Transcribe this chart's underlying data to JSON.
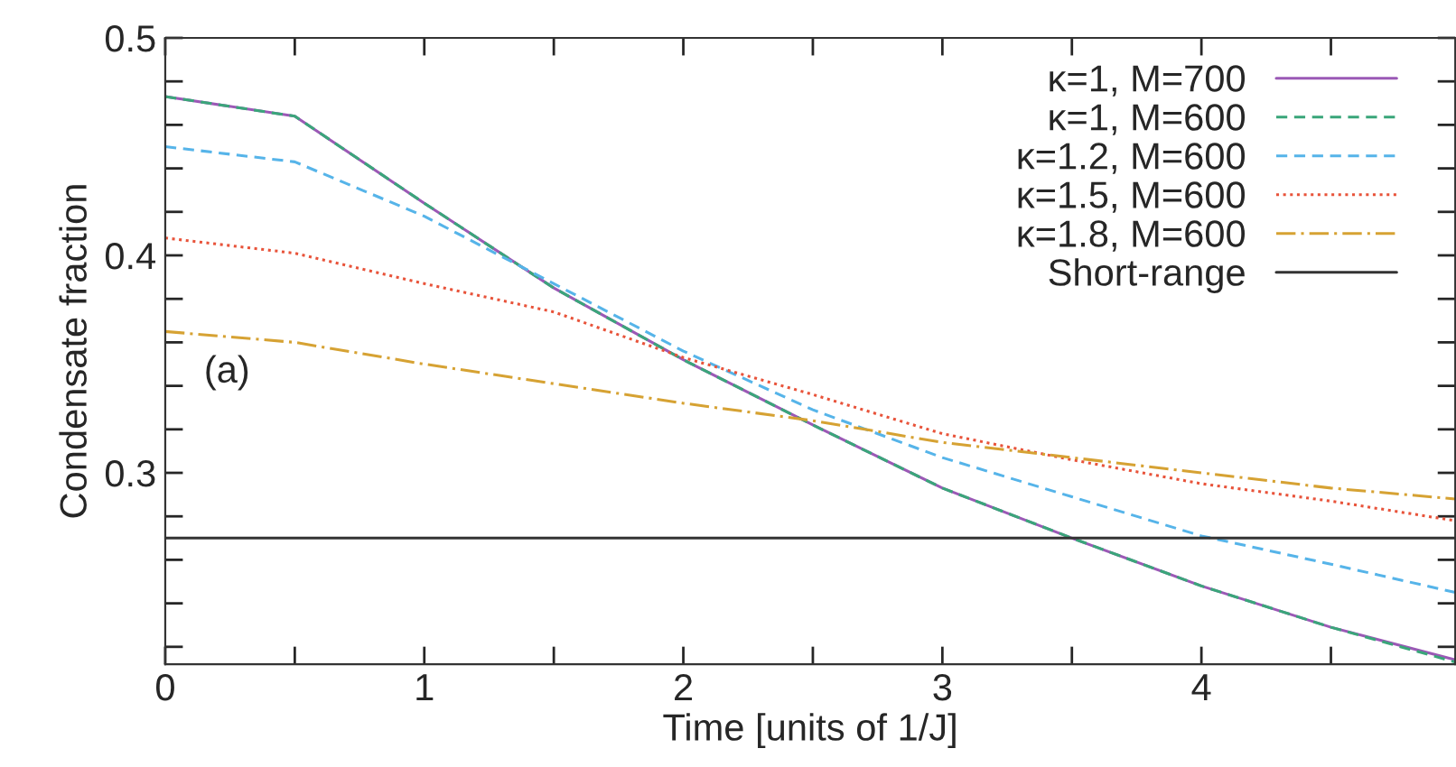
{
  "chart_data": {
    "type": "line",
    "xlabel": "Time [units of 1/J]",
    "ylabel": "Condensate fraction",
    "xlim": [
      0,
      4.98
    ],
    "xticks": [
      0,
      {
        "value": 0.5,
        "label": null
      },
      1,
      {
        "value": 1.5,
        "label": null
      },
      2,
      {
        "value": 2.5,
        "label": null
      },
      3,
      {
        "value": 3.5,
        "label": null
      },
      4,
      {
        "value": 4.5,
        "label": null
      }
    ],
    "ylim": [
      0.212,
      0.5
    ],
    "yticks": [
      {
        "value": 0.22,
        "label": null
      },
      {
        "value": 0.24,
        "label": null
      },
      {
        "value": 0.26,
        "label": null
      },
      {
        "value": 0.28,
        "label": null
      },
      0.3,
      {
        "value": 0.32,
        "label": null
      },
      {
        "value": 0.34,
        "label": null
      },
      {
        "value": 0.36,
        "label": null
      },
      {
        "value": 0.38,
        "label": null
      },
      0.4,
      {
        "value": 0.42,
        "label": null
      },
      {
        "value": 0.44,
        "label": null
      },
      {
        "value": 0.46,
        "label": null
      },
      {
        "value": 0.48,
        "label": null
      },
      0.5
    ],
    "grid": false,
    "legend": "top right",
    "annotations": [
      "(a)"
    ],
    "series": [
      {
        "name": "κ=1, M=700",
        "color": "#9b59b6",
        "line_style": "solid",
        "x": [
          0,
          0.5,
          1,
          1.5,
          2,
          2.5,
          3,
          3.5,
          4,
          4.5,
          4.98
        ],
        "values": [
          0.473,
          0.464,
          0.424,
          0.385,
          0.352,
          0.322,
          0.293,
          0.27,
          0.248,
          0.229,
          0.214
        ]
      },
      {
        "name": "κ=1, M=600",
        "color": "#3aa67a",
        "line_style": "dashed",
        "x": [
          0,
          0.5,
          1,
          1.5,
          2,
          2.5,
          3,
          3.5,
          4,
          4.5,
          4.98
        ],
        "values": [
          0.473,
          0.464,
          0.424,
          0.385,
          0.352,
          0.322,
          0.293,
          0.27,
          0.248,
          0.229,
          0.213
        ]
      },
      {
        "name": "κ=1.2, M=600",
        "color": "#56b4e9",
        "line_style": "dashed",
        "x": [
          0,
          0.5,
          1,
          1.5,
          2,
          2.5,
          3,
          3.5,
          4,
          4.5,
          4.98
        ],
        "values": [
          0.45,
          0.443,
          0.418,
          0.387,
          0.356,
          0.329,
          0.307,
          0.289,
          0.271,
          0.258,
          0.245
        ]
      },
      {
        "name": "κ=1.5, M=600",
        "color": "#e8533a",
        "line_style": "dotted",
        "x": [
          0,
          0.5,
          1,
          1.5,
          2,
          2.5,
          3,
          3.5,
          4,
          4.5,
          4.98
        ],
        "values": [
          0.408,
          0.401,
          0.387,
          0.374,
          0.353,
          0.336,
          0.318,
          0.306,
          0.295,
          0.287,
          0.278
        ]
      },
      {
        "name": "κ=1.8, M=600",
        "color": "#d6a233",
        "line_style": "dashdot",
        "x": [
          0,
          0.5,
          1,
          1.5,
          2,
          2.5,
          3,
          3.5,
          4,
          4.5,
          4.98
        ],
        "values": [
          0.365,
          0.36,
          0.35,
          0.341,
          0.332,
          0.324,
          0.314,
          0.307,
          0.3,
          0.293,
          0.288
        ]
      },
      {
        "name": "Short-range",
        "color": "#333333",
        "line_style": "solid",
        "x": [
          0,
          4.98
        ],
        "values": [
          0.27,
          0.27
        ]
      }
    ]
  }
}
